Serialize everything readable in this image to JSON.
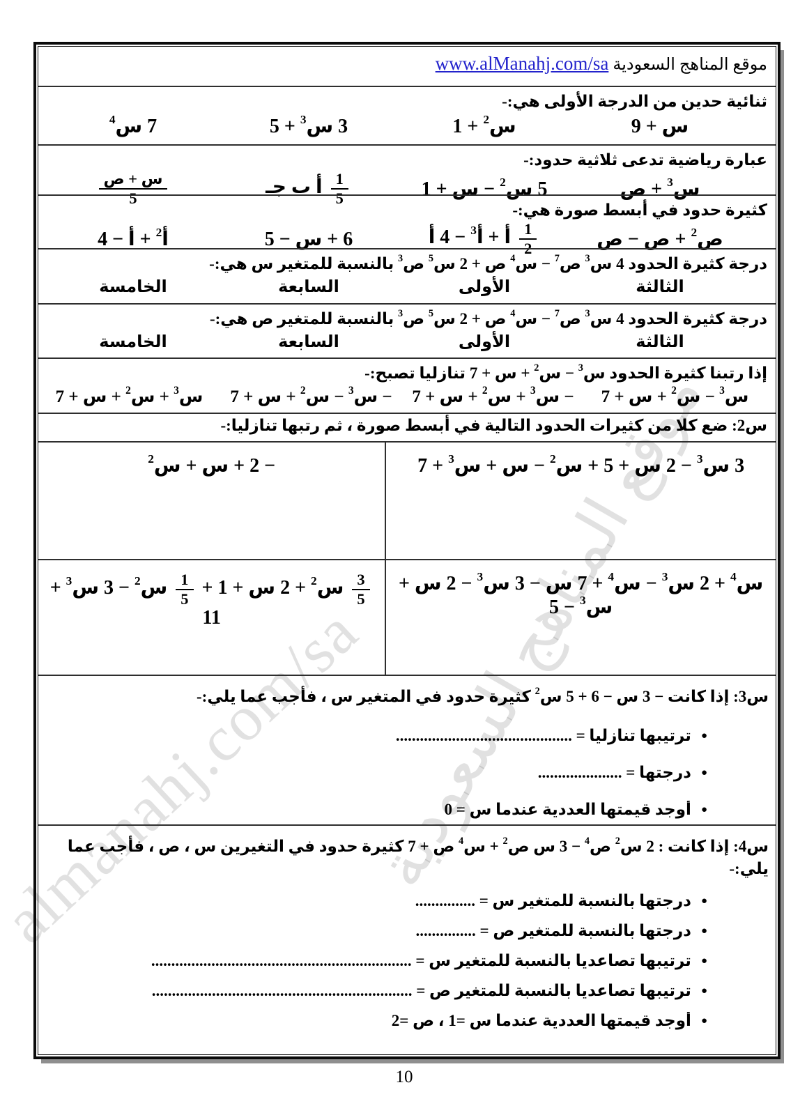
{
  "header": {
    "site_label": "موقع المناهج السعودية",
    "site_link": "www.alManahj.com/sa"
  },
  "watermark": {
    "arabic_text": "موقع المناهج السعودية",
    "english_text": "almanahj.com/sa"
  },
  "colors": {
    "link_blue": "#2323cc",
    "border_black": "#0b0b0b",
    "grid_line": "#2e2e2e",
    "shadow_gray": "#8f8f8f",
    "watermark_gray": "rgba(70,70,70,0.16)"
  },
  "questions": [
    {
      "stem": "ثنائية حدين من الدرجة الأولى هي:-",
      "options": [
        "س + 9",
        "س^2 + 1",
        "3 س^3 + 5",
        "7 س^4"
      ]
    },
    {
      "stem": "عبارة رياضية تدعى ثلاثية حدود:-",
      "options": [
        "س^3 + ص",
        "5 س^2 − س + 1",
        "{1|5} أ ب جـ",
        "{س + ص|5}"
      ]
    },
    {
      "stem": "كثيرة حدود في أبسط صورة هي:-",
      "options": [
        "ص^2 + ص − ص",
        "{1|2} أ + أ^3 − 4 أ",
        "6 + س − 5",
        "أ^2 + أ − 4"
      ]
    },
    {
      "stem": "درجة كثيرة الحدود 4 س^3 ص^7 − س^4 ص + 2 س^5 ص^3 بالنسبة للمتغير س هي:-",
      "options": [
        "الثالثة",
        "الأولى",
        "السابعة",
        "الخامسة"
      ]
    },
    {
      "stem": "درجة كثيرة الحدود 4 س^3 ص^7 − س^4 ص + 2 س^5 ص^3 بالنسبة للمتغير ص هي:-",
      "options": [
        "الثالثة",
        "الأولى",
        "السابعة",
        "الخامسة"
      ]
    },
    {
      "stem": "إذا رتبنا كثيرة الحدود س^3 − س^2 + س + 7 تنازليا تصبح:-",
      "options": [
        "س^3 − س^2 + س + 7",
        "− س^3 + س^2 + س + 7",
        "− س^3 − س^2 + س + 7",
        "س^3 + س^2 + س + 7"
      ]
    }
  ],
  "section_q2": {
    "title": "س2: ضع كلا من كثيرات الحدود التالية في أبسط صورة ، ثم رتبها تنازليا:-",
    "rows": [
      {
        "right": "3 س^3 − 2 س + 5 + س^2 − س + س^3 + 7",
        "left": "− 2 + س + س^2"
      },
      {
        "right": "س^4 + 2 س^3 − س^4 + 7 س − 3 س^3 − 2 س + س^3 − 5",
        "left": "{3|5} س^2 + 2 س + 1 + {1|5} س^2 − 3 س^3 + 11"
      }
    ]
  },
  "section_q3": {
    "title": "س3: إذا كانت − 3 س − 6 + 5 س^2 كثيرة حدود في المتغير س ، فأجب عما يلي:-",
    "bullets": [
      "ترتيبها تنازليا = ............................................",
      "درجتها = .....................",
      "أوجد قيمتها العددية عندما س = 0"
    ]
  },
  "section_q4": {
    "title": "س4: إذا كانت : 2 س^2 ص^4 − 3 س ص^2 + س^4 ص + 7 كثيرة حدود في التغيرين س ، ص ، فأجب عما يلي:-",
    "bullets": [
      "درجتها بالنسبة للمتغير س = ...............",
      "درجتها بالنسبة للمتغير ص = ...............",
      "ترتيبها تصاعديا بالنسبة للمتغير س = .................................................................",
      "ترتيبها تصاعديا بالنسبة للمتغير ص = .................................................................",
      "أوجد قيمتها العددية عندما س =1 ،   ص =2"
    ]
  },
  "footer": {
    "page_number": "10"
  }
}
